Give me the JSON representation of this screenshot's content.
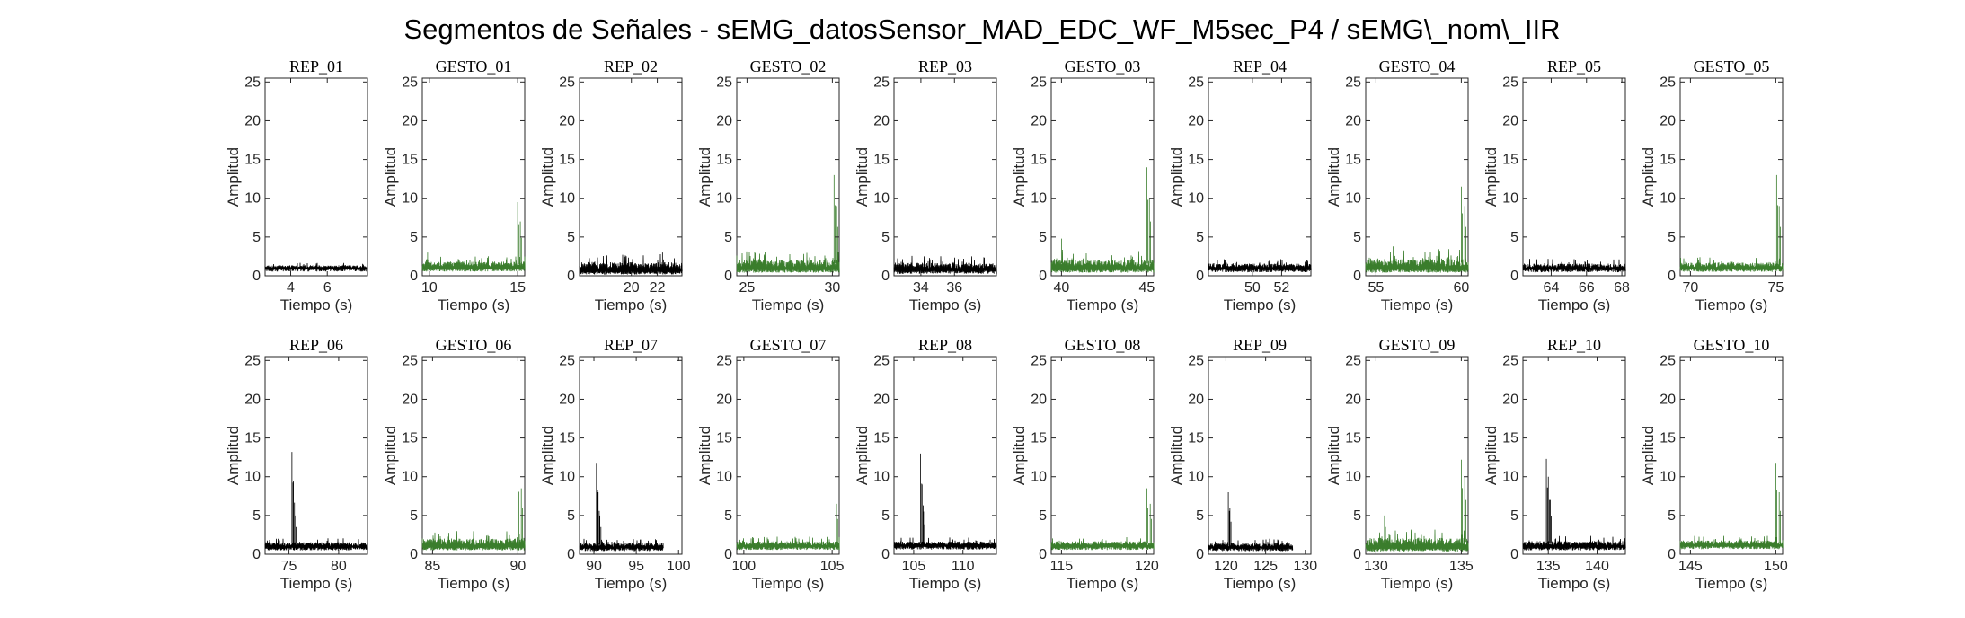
{
  "suptitle": "Segmentos de Señales - sEMG_datosSensor_MAD_EDC_WF_M5sec_P4 / sEMG\\_nom\\_IIR",
  "colors": {
    "rep": "#000000",
    "gesto": "#3a7d2c",
    "axis": "#262626"
  },
  "chart_data": [
    {
      "type": "line",
      "title": "REP_01",
      "ylabel": "Amplitud",
      "xlabel": "Tiempo (s)",
      "xlim": [
        2.6,
        8.2
      ],
      "ylim": [
        0,
        25.5
      ],
      "xticks": [
        4,
        6
      ],
      "yticks": [
        0,
        5,
        10,
        15,
        20,
        25
      ],
      "series": [
        {
          "name": "REP",
          "x": [
            2.6,
            8.2
          ],
          "baseline": 1.2,
          "noise": 0.5,
          "peaks": []
        }
      ]
    },
    {
      "type": "line",
      "title": "GESTO_01",
      "ylabel": "Amplitud",
      "xlabel": "Tiempo (s)",
      "xlim": [
        9.6,
        15.4
      ],
      "ylim": [
        0,
        25.5
      ],
      "xticks": [
        10,
        15
      ],
      "yticks": [
        0,
        5,
        10,
        15,
        20,
        25
      ],
      "series": [
        {
          "name": "GESTO",
          "x": [
            9.6,
            15.4
          ],
          "baseline": 1.5,
          "noise": 1.1,
          "peaks": [
            {
              "x": 15.0,
              "y": 9.5
            },
            {
              "x": 15.15,
              "y": 7.0
            },
            {
              "x": 9.9,
              "y": 3.0
            }
          ]
        }
      ]
    },
    {
      "type": "line",
      "title": "REP_02",
      "ylabel": "Amplitud",
      "xlabel": "Tiempo (s)",
      "xlim": [
        16.0,
        23.9
      ],
      "ylim": [
        0,
        25.5
      ],
      "xticks": [
        20,
        22
      ],
      "yticks": [
        0,
        5,
        10,
        15,
        20,
        25
      ],
      "series": [
        {
          "name": "REP",
          "x": [
            16.0,
            23.9
          ],
          "baseline": 1.3,
          "noise": 1.5,
          "peaks": [
            {
              "x": 22.4,
              "y": 3.0
            }
          ]
        }
      ]
    },
    {
      "type": "line",
      "title": "GESTO_02",
      "ylabel": "Amplitud",
      "xlabel": "Tiempo (s)",
      "xlim": [
        24.4,
        30.4
      ],
      "ylim": [
        0,
        25.5
      ],
      "xticks": [
        25,
        30
      ],
      "yticks": [
        0,
        5,
        10,
        15,
        20,
        25
      ],
      "series": [
        {
          "name": "GESTO",
          "x": [
            24.4,
            30.4
          ],
          "baseline": 1.6,
          "noise": 1.6,
          "peaks": [
            {
              "x": 30.1,
              "y": 13.0
            },
            {
              "x": 30.25,
              "y": 9.0
            }
          ]
        }
      ]
    },
    {
      "type": "line",
      "title": "REP_03",
      "ylabel": "Amplitud",
      "xlabel": "Tiempo (s)",
      "xlim": [
        32.4,
        38.5
      ],
      "ylim": [
        0,
        25.5
      ],
      "xticks": [
        34,
        36
      ],
      "yticks": [
        0,
        5,
        10,
        15,
        20,
        25
      ],
      "series": [
        {
          "name": "REP",
          "x": [
            32.4,
            38.5
          ],
          "baseline": 1.3,
          "noise": 1.3,
          "peaks": []
        }
      ]
    },
    {
      "type": "line",
      "title": "GESTO_03",
      "ylabel": "Amplitud",
      "xlabel": "Tiempo (s)",
      "xlim": [
        39.4,
        45.4
      ],
      "ylim": [
        0,
        25.5
      ],
      "xticks": [
        40,
        45
      ],
      "yticks": [
        0,
        5,
        10,
        15,
        20,
        25
      ],
      "series": [
        {
          "name": "GESTO",
          "x": [
            39.4,
            45.4
          ],
          "baseline": 1.6,
          "noise": 1.6,
          "peaks": [
            {
              "x": 45.0,
              "y": 14.0
            },
            {
              "x": 45.15,
              "y": 10.0
            },
            {
              "x": 40.0,
              "y": 4.8
            }
          ]
        }
      ]
    },
    {
      "type": "line",
      "title": "REP_04",
      "ylabel": "Amplitud",
      "xlabel": "Tiempo (s)",
      "xlim": [
        47.0,
        54.0
      ],
      "ylim": [
        0,
        25.5
      ],
      "xticks": [
        50,
        52
      ],
      "yticks": [
        0,
        5,
        10,
        15,
        20,
        25
      ],
      "series": [
        {
          "name": "REP",
          "x": [
            47.0,
            54.0
          ],
          "baseline": 1.3,
          "noise": 0.9,
          "peaks": []
        }
      ]
    },
    {
      "type": "line",
      "title": "GESTO_04",
      "ylabel": "Amplitud",
      "xlabel": "Tiempo (s)",
      "xlim": [
        54.4,
        60.4
      ],
      "ylim": [
        0,
        25.5
      ],
      "xticks": [
        55,
        60
      ],
      "yticks": [
        0,
        5,
        10,
        15,
        20,
        25
      ],
      "series": [
        {
          "name": "GESTO",
          "x": [
            54.4,
            60.4
          ],
          "baseline": 1.7,
          "noise": 1.8,
          "peaks": [
            {
              "x": 60.0,
              "y": 11.5
            },
            {
              "x": 60.2,
              "y": 9.0
            },
            {
              "x": 56.0,
              "y": 3.8
            }
          ]
        }
      ]
    },
    {
      "type": "line",
      "title": "REP_05",
      "ylabel": "Amplitud",
      "xlabel": "Tiempo (s)",
      "xlim": [
        62.4,
        68.2
      ],
      "ylim": [
        0,
        25.5
      ],
      "xticks": [
        64,
        66,
        68
      ],
      "yticks": [
        0,
        5,
        10,
        15,
        20,
        25
      ],
      "series": [
        {
          "name": "REP",
          "x": [
            62.4,
            68.2
          ],
          "baseline": 1.3,
          "noise": 0.9,
          "peaks": []
        }
      ]
    },
    {
      "type": "line",
      "title": "GESTO_05",
      "ylabel": "Amplitud",
      "xlabel": "Tiempo (s)",
      "xlim": [
        69.4,
        75.4
      ],
      "ylim": [
        0,
        25.5
      ],
      "xticks": [
        70,
        75
      ],
      "yticks": [
        0,
        5,
        10,
        15,
        20,
        25
      ],
      "series": [
        {
          "name": "GESTO",
          "x": [
            69.4,
            75.4
          ],
          "baseline": 1.4,
          "noise": 1.0,
          "peaks": [
            {
              "x": 75.05,
              "y": 13.0
            },
            {
              "x": 75.2,
              "y": 9.0
            }
          ]
        }
      ]
    },
    {
      "type": "line",
      "title": "REP_06",
      "ylabel": "Amplitud",
      "xlabel": "Tiempo (s)",
      "xlim": [
        72.6,
        82.9
      ],
      "ylim": [
        0,
        25.5
      ],
      "xticks": [
        75,
        80
      ],
      "yticks": [
        0,
        5,
        10,
        15,
        20,
        25
      ],
      "series": [
        {
          "name": "REP",
          "x": [
            72.6,
            82.9
          ],
          "baseline": 1.3,
          "noise": 0.8,
          "peaks": [
            {
              "x": 75.3,
              "y": 13.2
            },
            {
              "x": 75.45,
              "y": 9.5
            },
            {
              "x": 75.6,
              "y": 5.0
            }
          ]
        }
      ]
    },
    {
      "type": "line",
      "title": "GESTO_06",
      "ylabel": "Amplitud",
      "xlabel": "Tiempo (s)",
      "xlim": [
        84.4,
        90.4
      ],
      "ylim": [
        0,
        25.5
      ],
      "xticks": [
        85,
        90
      ],
      "yticks": [
        0,
        5,
        10,
        15,
        20,
        25
      ],
      "series": [
        {
          "name": "GESTO",
          "x": [
            84.4,
            90.4
          ],
          "baseline": 1.6,
          "noise": 1.4,
          "peaks": [
            {
              "x": 90.0,
              "y": 11.5
            },
            {
              "x": 90.2,
              "y": 8.5
            }
          ]
        }
      ]
    },
    {
      "type": "line",
      "title": "REP_07",
      "ylabel": "Amplitud",
      "xlabel": "Tiempo (s)",
      "xlim": [
        88.3,
        100.4
      ],
      "ylim": [
        0,
        25.5
      ],
      "xticks": [
        90,
        95,
        100
      ],
      "yticks": [
        0,
        5,
        10,
        15,
        20,
        25
      ],
      "series": [
        {
          "name": "REP",
          "x": [
            88.3,
            98.2
          ],
          "baseline": 1.2,
          "noise": 0.8,
          "peaks": [
            {
              "x": 90.3,
              "y": 11.8
            },
            {
              "x": 90.5,
              "y": 8.0
            },
            {
              "x": 90.7,
              "y": 5.0
            }
          ]
        }
      ]
    },
    {
      "type": "line",
      "title": "GESTO_07",
      "ylabel": "Amplitud",
      "xlabel": "Tiempo (s)",
      "xlim": [
        99.6,
        105.4
      ],
      "ylim": [
        0,
        25.5
      ],
      "xticks": [
        100,
        105
      ],
      "yticks": [
        0,
        5,
        10,
        15,
        20,
        25
      ],
      "series": [
        {
          "name": "GESTO",
          "x": [
            99.6,
            105.4
          ],
          "baseline": 1.4,
          "noise": 0.9,
          "peaks": [
            {
              "x": 105.25,
              "y": 6.5
            }
          ]
        }
      ]
    },
    {
      "type": "line",
      "title": "REP_08",
      "ylabel": "Amplitud",
      "xlabel": "Tiempo (s)",
      "xlim": [
        103.0,
        113.4
      ],
      "ylim": [
        0,
        25.5
      ],
      "xticks": [
        105,
        110
      ],
      "yticks": [
        0,
        5,
        10,
        15,
        20,
        25
      ],
      "series": [
        {
          "name": "REP",
          "x": [
            103.0,
            113.4
          ],
          "baseline": 1.4,
          "noise": 0.8,
          "peaks": [
            {
              "x": 105.7,
              "y": 13.0
            },
            {
              "x": 105.85,
              "y": 9.0
            },
            {
              "x": 106.0,
              "y": 5.5
            }
          ]
        }
      ]
    },
    {
      "type": "line",
      "title": "GESTO_08",
      "ylabel": "Amplitud",
      "xlabel": "Tiempo (s)",
      "xlim": [
        114.4,
        120.4
      ],
      "ylim": [
        0,
        25.5
      ],
      "xticks": [
        115,
        120
      ],
      "yticks": [
        0,
        5,
        10,
        15,
        20,
        25
      ],
      "series": [
        {
          "name": "GESTO",
          "x": [
            114.4,
            120.4
          ],
          "baseline": 1.4,
          "noise": 0.9,
          "peaks": [
            {
              "x": 120.0,
              "y": 8.5
            },
            {
              "x": 120.2,
              "y": 6.5
            }
          ]
        }
      ]
    },
    {
      "type": "line",
      "title": "REP_09",
      "ylabel": "Amplitud",
      "xlabel": "Tiempo (s)",
      "xlim": [
        117.8,
        130.7
      ],
      "ylim": [
        0,
        25.5
      ],
      "xticks": [
        120,
        125,
        130
      ],
      "yticks": [
        0,
        5,
        10,
        15,
        20,
        25
      ],
      "series": [
        {
          "name": "REP",
          "x": [
            117.8,
            128.4
          ],
          "baseline": 1.2,
          "noise": 0.8,
          "peaks": [
            {
              "x": 120.3,
              "y": 8.0
            },
            {
              "x": 120.5,
              "y": 6.0
            }
          ]
        }
      ]
    },
    {
      "type": "line",
      "title": "GESTO_09",
      "ylabel": "Amplitud",
      "xlabel": "Tiempo (s)",
      "xlim": [
        129.4,
        135.4
      ],
      "ylim": [
        0,
        25.5
      ],
      "xticks": [
        130,
        135
      ],
      "yticks": [
        0,
        5,
        10,
        15,
        20,
        25
      ],
      "series": [
        {
          "name": "GESTO",
          "x": [
            129.4,
            135.4
          ],
          "baseline": 1.6,
          "noise": 1.7,
          "peaks": [
            {
              "x": 135.0,
              "y": 12.2
            },
            {
              "x": 135.2,
              "y": 10.0
            },
            {
              "x": 130.5,
              "y": 5.0
            }
          ]
        }
      ]
    },
    {
      "type": "line",
      "title": "REP_10",
      "ylabel": "Amplitud",
      "xlabel": "Tiempo (s)",
      "xlim": [
        132.4,
        142.9
      ],
      "ylim": [
        0,
        25.5
      ],
      "xticks": [
        135,
        140
      ],
      "yticks": [
        0,
        5,
        10,
        15,
        20,
        25
      ],
      "series": [
        {
          "name": "REP",
          "x": [
            132.4,
            142.9
          ],
          "baseline": 1.4,
          "noise": 1.0,
          "peaks": [
            {
              "x": 134.8,
              "y": 12.3
            },
            {
              "x": 135.0,
              "y": 10.0
            },
            {
              "x": 135.2,
              "y": 7.0
            }
          ]
        }
      ]
    },
    {
      "type": "line",
      "title": "GESTO_10",
      "ylabel": "Amplitud",
      "xlabel": "Tiempo (s)",
      "xlim": [
        144.4,
        150.4
      ],
      "ylim": [
        0,
        25.5
      ],
      "xticks": [
        145,
        150
      ],
      "yticks": [
        0,
        5,
        10,
        15,
        20,
        25
      ],
      "series": [
        {
          "name": "GESTO",
          "x": [
            144.4,
            150.4
          ],
          "baseline": 1.5,
          "noise": 0.9,
          "peaks": [
            {
              "x": 150.0,
              "y": 11.8
            },
            {
              "x": 150.2,
              "y": 8.0
            }
          ]
        }
      ]
    }
  ]
}
